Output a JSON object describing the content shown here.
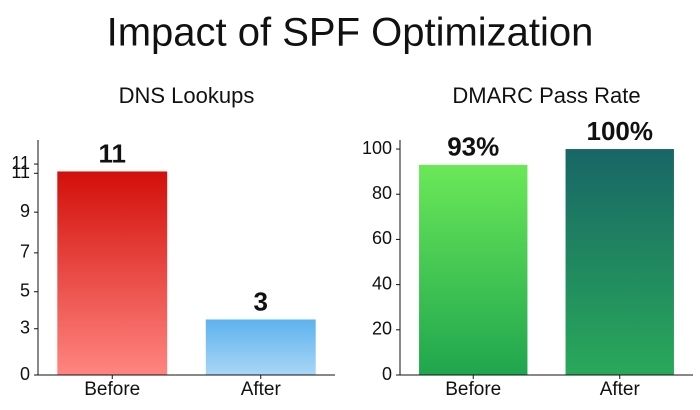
{
  "title": "Impact of SPF Optimization",
  "chart_data": [
    {
      "type": "bar",
      "title": "DNS Lookups",
      "categories": [
        "Before",
        "After"
      ],
      "values": [
        11,
        3
      ],
      "gradients": [
        [
          "#d30f0a",
          "#ff8580"
        ],
        [
          "#5db2ee",
          "#a9d6f6"
        ]
      ],
      "ylim": [
        0,
        12.7
      ],
      "yticks": [
        {
          "value": 0,
          "label": "0"
        },
        {
          "value": 2.5,
          "label": "3"
        },
        {
          "value": 4.5,
          "label": "5"
        },
        {
          "value": 6.6,
          "label": "7"
        },
        {
          "value": 8.8,
          "label": "9"
        },
        {
          "value": 10.9,
          "label": "11"
        },
        {
          "value": 11.4,
          "label": "11"
        }
      ]
    },
    {
      "type": "bar",
      "title": "DMARC Pass Rate",
      "categories": [
        "Before",
        "After"
      ],
      "values": [
        93,
        100
      ],
      "value_labels": [
        "93%",
        "100%"
      ],
      "gradients": [
        [
          "#6be858",
          "#1fa64e"
        ],
        [
          "#186666",
          "#29a95a"
        ]
      ],
      "ylim": [
        0,
        104
      ],
      "yticks": [
        0,
        20,
        40,
        60,
        80,
        100
      ]
    }
  ]
}
